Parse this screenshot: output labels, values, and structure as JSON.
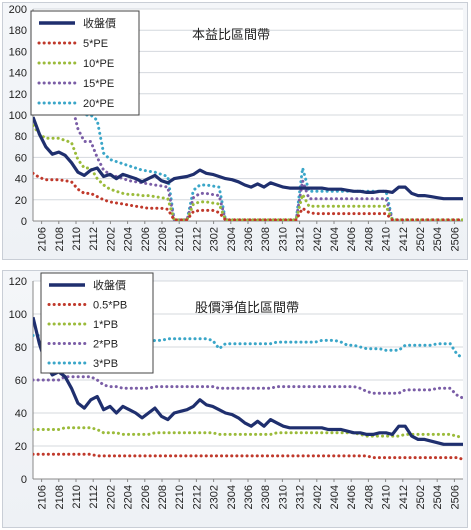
{
  "chart_data": [
    {
      "type": "line",
      "title": "本益比區間帶",
      "xlabel": "",
      "ylabel": "",
      "ylim": [
        0,
        200
      ],
      "yticks": [
        0,
        20,
        40,
        60,
        80,
        100,
        120,
        140,
        160,
        180,
        200
      ],
      "grid": true,
      "legend_position": "top-left",
      "x_tick_labels": [
        "2106",
        "2108",
        "2110",
        "2112",
        "2202",
        "2204",
        "2206",
        "2208",
        "2210",
        "2212",
        "2302",
        "2304",
        "2306",
        "2308",
        "2310",
        "2312",
        "2402",
        "2404",
        "2406",
        "2408",
        "2410",
        "2412",
        "2502",
        "2504",
        "2506"
      ],
      "x_tick_step": 2,
      "colors": {
        "price": "#1f2f6e",
        "band1": "#c0392b",
        "band2": "#9bbb3a",
        "band3": "#7b5ea7",
        "band4": "#3aa6c8"
      },
      "series": [
        {
          "name": "收盤價",
          "style": "solid",
          "values": [
            98,
            82,
            70,
            63,
            65,
            62,
            55,
            46,
            43,
            48,
            50,
            42,
            44,
            40,
            44,
            42,
            40,
            37,
            40,
            43,
            38,
            36,
            40,
            41,
            42,
            44,
            48,
            45,
            44,
            42,
            40,
            39,
            37,
            34,
            32,
            35,
            32,
            36,
            34,
            32,
            31,
            31,
            31,
            31,
            31,
            31,
            30,
            30,
            30,
            29,
            28,
            28,
            27,
            27,
            28,
            28,
            27,
            32,
            32,
            26,
            24,
            24,
            23,
            22,
            21,
            21,
            21,
            21
          ]
        },
        {
          "name": "5*PE",
          "style": "dotted",
          "values": [
            45,
            41,
            39,
            39,
            39,
            38,
            37,
            30,
            26,
            26,
            23,
            20,
            18,
            17,
            16,
            15,
            14,
            13,
            12,
            12,
            12,
            11,
            1,
            1,
            1,
            9,
            10,
            10,
            10,
            8,
            1,
            1,
            1,
            1,
            1,
            1,
            1,
            1,
            1,
            1,
            1,
            1,
            12,
            8,
            7,
            7,
            7,
            7,
            7,
            7,
            7,
            7,
            7,
            7,
            7,
            7,
            1,
            1,
            1,
            1,
            1,
            1,
            1,
            1,
            1,
            1,
            1,
            1
          ]
        },
        {
          "name": "10*PE",
          "style": "dotted",
          "values": [
            90,
            82,
            78,
            78,
            78,
            76,
            74,
            58,
            50,
            50,
            40,
            34,
            30,
            28,
            26,
            25,
            25,
            24,
            24,
            23,
            22,
            21,
            1,
            1,
            1,
            16,
            18,
            18,
            17,
            16,
            1,
            1,
            1,
            1,
            1,
            1,
            1,
            1,
            1,
            1,
            1,
            1,
            25,
            14,
            14,
            14,
            14,
            14,
            14,
            14,
            14,
            14,
            14,
            14,
            14,
            14,
            1,
            1,
            1,
            1,
            1,
            1,
            1,
            1,
            1,
            1,
            1,
            1
          ]
        },
        {
          "name": "15*PE",
          "style": "dotted",
          "values": [
            135,
            123,
            117,
            117,
            117,
            114,
            111,
            87,
            75,
            75,
            60,
            48,
            44,
            42,
            40,
            38,
            37,
            36,
            35,
            34,
            33,
            32,
            1,
            1,
            1,
            22,
            26,
            26,
            25,
            24,
            1,
            1,
            1,
            1,
            1,
            1,
            1,
            1,
            1,
            1,
            1,
            1,
            38,
            21,
            21,
            21,
            21,
            21,
            21,
            21,
            21,
            21,
            21,
            21,
            21,
            21,
            1,
            1,
            1,
            1,
            1,
            1,
            1,
            1,
            1,
            1,
            1,
            1
          ]
        },
        {
          "name": "20*PE",
          "style": "dotted",
          "values": [
            180,
            164,
            156,
            156,
            156,
            152,
            148,
            116,
            100,
            100,
            95,
            64,
            58,
            56,
            54,
            52,
            50,
            48,
            47,
            46,
            44,
            42,
            1,
            1,
            1,
            29,
            34,
            34,
            33,
            32,
            1,
            1,
            1,
            1,
            1,
            1,
            1,
            1,
            1,
            1,
            1,
            1,
            50,
            28,
            28,
            28,
            28,
            28,
            28,
            28,
            28,
            28,
            28,
            28,
            28,
            28,
            1,
            1,
            1,
            1,
            1,
            1,
            1,
            1,
            1,
            1,
            1,
            1
          ]
        }
      ]
    },
    {
      "type": "line",
      "title": "股價淨值比區間帶",
      "xlabel": "",
      "ylabel": "",
      "ylim": [
        0,
        120
      ],
      "yticks": [
        0,
        20,
        40,
        60,
        80,
        100,
        120
      ],
      "grid": true,
      "legend_position": "top-left",
      "x_tick_labels": [
        "2106",
        "2108",
        "2110",
        "2112",
        "2202",
        "2204",
        "2206",
        "2208",
        "2210",
        "2212",
        "2302",
        "2304",
        "2306",
        "2308",
        "2310",
        "2312",
        "2402",
        "2404",
        "2406",
        "2408",
        "2410",
        "2412",
        "2502",
        "2504",
        "2506"
      ],
      "x_tick_step": 2,
      "colors": {
        "price": "#1f2f6e",
        "band1": "#c0392b",
        "band2": "#9bbb3a",
        "band3": "#7b5ea7",
        "band4": "#3aa6c8"
      },
      "series": [
        {
          "name": "收盤價",
          "style": "solid",
          "values": [
            98,
            82,
            70,
            63,
            65,
            62,
            55,
            46,
            43,
            48,
            50,
            42,
            44,
            40,
            44,
            42,
            40,
            37,
            40,
            43,
            38,
            36,
            40,
            41,
            42,
            44,
            48,
            45,
            44,
            42,
            40,
            39,
            37,
            34,
            32,
            35,
            32,
            36,
            34,
            32,
            31,
            31,
            31,
            31,
            31,
            31,
            30,
            30,
            30,
            29,
            28,
            28,
            27,
            27,
            28,
            28,
            27,
            32,
            32,
            26,
            24,
            24,
            23,
            22,
            21,
            21,
            21,
            21
          ]
        },
        {
          "name": "0.5*PB",
          "style": "dotted",
          "values": [
            15,
            15,
            15,
            15,
            15,
            15,
            15,
            15,
            15,
            15,
            14,
            14,
            14,
            14,
            14,
            14,
            14,
            14,
            14,
            14,
            14,
            14,
            14,
            14,
            14,
            14,
            14,
            14,
            14,
            14,
            14,
            14,
            14,
            14,
            14,
            14,
            14,
            14,
            14,
            14,
            14,
            14,
            14,
            14,
            14,
            14,
            14,
            14,
            14,
            14,
            14,
            14,
            14,
            13,
            13,
            13,
            13,
            13,
            13,
            13,
            13,
            13,
            13,
            13,
            13,
            13,
            13,
            12
          ]
        },
        {
          "name": "1*PB",
          "style": "dotted",
          "values": [
            30,
            30,
            30,
            30,
            30,
            31,
            31,
            31,
            31,
            31,
            30,
            28,
            28,
            28,
            27,
            27,
            27,
            27,
            27,
            28,
            28,
            28,
            28,
            28,
            28,
            28,
            28,
            28,
            28,
            27,
            27,
            27,
            27,
            27,
            27,
            27,
            27,
            27,
            28,
            28,
            28,
            28,
            28,
            28,
            28,
            28,
            28,
            28,
            28,
            28,
            28,
            27,
            26,
            26,
            26,
            26,
            26,
            26,
            27,
            27,
            27,
            27,
            27,
            27,
            27,
            27,
            26,
            25
          ]
        },
        {
          "name": "2*PB",
          "style": "dotted",
          "values": [
            60,
            60,
            60,
            60,
            60,
            62,
            62,
            62,
            62,
            62,
            60,
            57,
            56,
            56,
            55,
            55,
            55,
            55,
            55,
            56,
            56,
            56,
            56,
            56,
            56,
            56,
            56,
            56,
            56,
            55,
            55,
            55,
            55,
            55,
            55,
            55,
            55,
            55,
            56,
            56,
            56,
            56,
            56,
            56,
            56,
            56,
            56,
            56,
            56,
            56,
            56,
            55,
            53,
            52,
            52,
            52,
            52,
            52,
            54,
            54,
            54,
            54,
            54,
            55,
            55,
            55,
            51,
            49
          ]
        },
        {
          "name": "3*PB",
          "style": "dotted",
          "values": [
            87,
            87,
            87,
            87,
            87,
            87,
            87,
            87,
            87,
            87,
            86,
            85,
            84,
            84,
            83,
            83,
            83,
            83,
            83,
            84,
            84,
            85,
            85,
            85,
            85,
            85,
            85,
            85,
            84,
            79,
            82,
            82,
            82,
            82,
            82,
            82,
            82,
            82,
            83,
            83,
            83,
            83,
            83,
            83,
            83,
            84,
            84,
            84,
            83,
            81,
            81,
            80,
            79,
            79,
            79,
            78,
            78,
            78,
            81,
            81,
            81,
            81,
            81,
            82,
            82,
            82,
            76,
            73
          ]
        }
      ]
    }
  ]
}
